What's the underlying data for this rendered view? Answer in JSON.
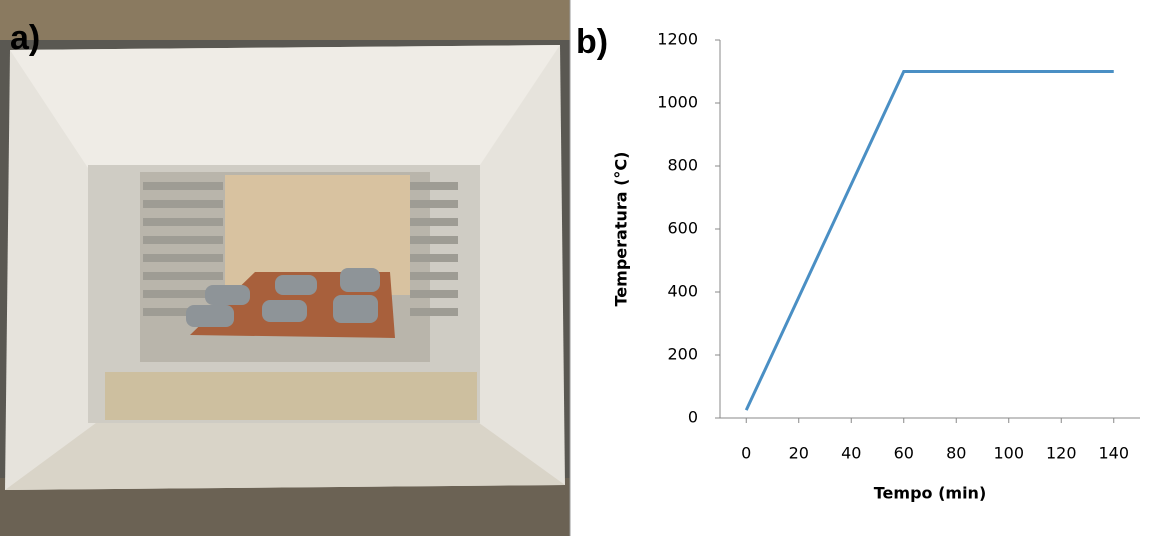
{
  "panels": {
    "a": "a)",
    "b": "b)"
  },
  "chart_data": {
    "type": "line",
    "x_label": "Tempo (min)",
    "y_label": "Temperatura (°C)",
    "x": [
      0,
      60,
      140
    ],
    "series": [
      {
        "color": "#4a8fc4",
        "values": [
          25,
          1100,
          1100
        ]
      }
    ],
    "xlim": [
      -10,
      150
    ],
    "xticks": [
      0,
      20,
      40,
      60,
      80,
      100,
      120,
      140
    ],
    "ylim": [
      0,
      1200
    ],
    "yticks": [
      0,
      200,
      400,
      600,
      800,
      1000,
      1200
    ],
    "grid": false
  }
}
